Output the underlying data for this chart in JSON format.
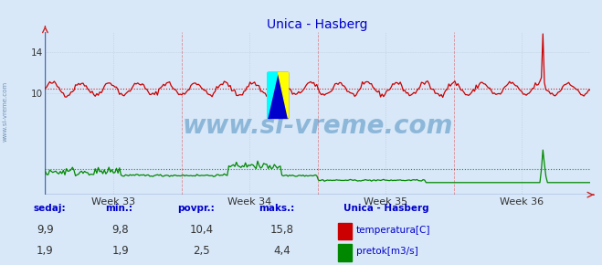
{
  "title": "Unica - Hasberg",
  "title_color": "#0000cc",
  "bg_color": "#d8e8f8",
  "plot_bg_color": "#d8e8f8",
  "grid_color": "#b8c8d8",
  "x_weeks": [
    "Week 33",
    "Week 34",
    "Week 35",
    "Week 36"
  ],
  "ylim_min": 0,
  "ylim_max": 16,
  "ytick_vals": [
    10,
    14
  ],
  "temp_color": "#cc0000",
  "temp_avg": 10.4,
  "temp_min": 9.8,
  "temp_max": 15.8,
  "temp_current": 9.9,
  "flow_color": "#008800",
  "flow_avg": 2.5,
  "flow_min": 1.9,
  "flow_max": 4.4,
  "flow_current": 1.9,
  "watermark": "www.si-vreme.com",
  "watermark_color": "#4488bb",
  "watermark_alpha": 0.5,
  "label_color": "#0000cc",
  "legend_title": "Unica - Hasberg",
  "n_points": 360,
  "temp_base": 10.4,
  "temp_amplitude": 0.6,
  "sidebar_text": "www.si-vreme.com",
  "sidebar_color": "#6688aa",
  "axis_line_color": "#4466aa",
  "week_line_color": "#dd4444",
  "avg_line_color_temp": "#cc0000",
  "avg_line_color_flow": "#008800"
}
